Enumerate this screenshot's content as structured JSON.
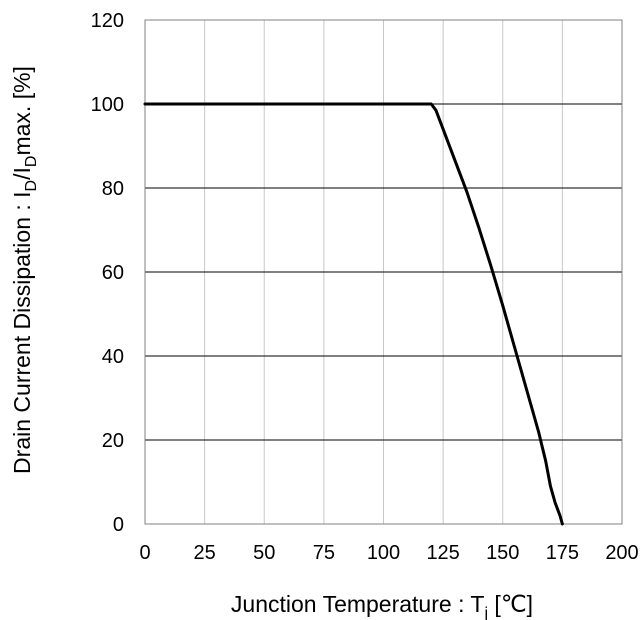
{
  "chart_data": {
    "type": "line",
    "title": "",
    "xlabel": {
      "prefix": "Junction Temperature : T",
      "sub": "j",
      "suffix": " [℃]"
    },
    "ylabel": {
      "part1": "Drain Current Dissipation : I",
      "sub1": "D",
      "part2": "/I",
      "sub2": "D",
      "part3": "max. [%]"
    },
    "xlim": [
      0,
      200
    ],
    "ylim": [
      0,
      120
    ],
    "x_ticks": [
      0,
      25,
      50,
      75,
      100,
      125,
      150,
      175,
      200
    ],
    "y_ticks": [
      0,
      20,
      40,
      60,
      80,
      100,
      120
    ],
    "grid": true,
    "series": [
      {
        "color": "#000000",
        "points": [
          [
            0,
            100
          ],
          [
            120,
            100
          ],
          [
            122,
            98.5
          ],
          [
            125,
            94
          ],
          [
            130,
            86.5
          ],
          [
            135,
            79
          ],
          [
            140,
            70.5
          ],
          [
            145,
            61.5
          ],
          [
            150,
            52
          ],
          [
            155,
            42
          ],
          [
            160,
            32
          ],
          [
            165,
            22
          ],
          [
            168,
            15
          ],
          [
            170,
            9
          ],
          [
            172,
            5
          ],
          [
            174,
            2
          ],
          [
            175,
            0
          ]
        ]
      }
    ]
  }
}
